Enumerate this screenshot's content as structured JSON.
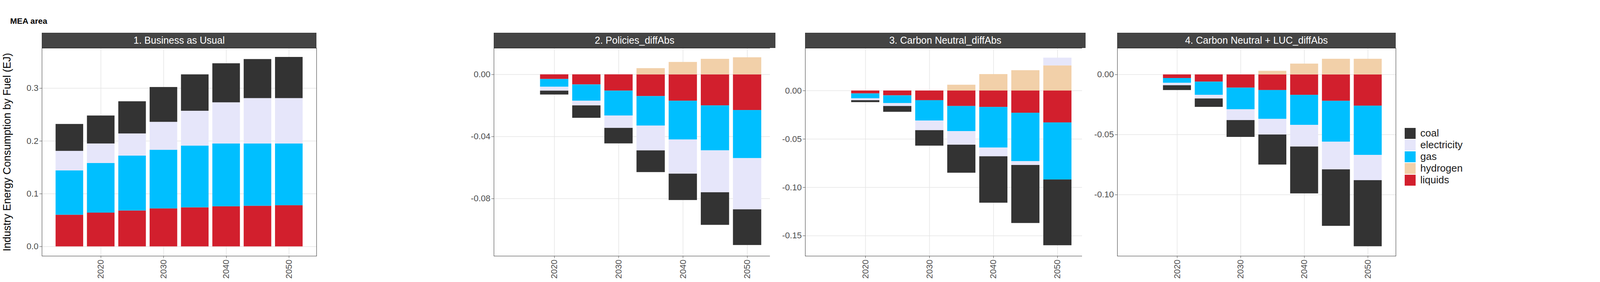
{
  "title": "MEA area",
  "chart_data": [
    {
      "type": "bar",
      "title": "1. Business as Usual",
      "ylabel": "Industry Energy Consumption by Fuel (EJ)",
      "stacked": true,
      "grid": true,
      "x": [
        2015,
        2020,
        2025,
        2030,
        2035,
        2040,
        2045,
        2050
      ],
      "xlim": [
        2010.6,
        2054.4
      ],
      "xticks": [
        2020,
        2030,
        2040,
        2050
      ],
      "ylim": [
        -0.018,
        0.376
      ],
      "yticks": [
        {
          "value": 0,
          "label": "0.0"
        },
        0.1,
        0.2,
        0.3
      ],
      "series": [
        {
          "name": "coal",
          "color": "#333333",
          "values": [
            0.051,
            0.053,
            0.061,
            0.066,
            0.069,
            0.074,
            0.074,
            0.078
          ]
        },
        {
          "name": "electricity",
          "color": "#E6E6FA",
          "values": [
            0.037,
            0.037,
            0.042,
            0.053,
            0.066,
            0.078,
            0.086,
            0.086
          ]
        },
        {
          "name": "gas",
          "color": "#00BFFF",
          "values": [
            0.084,
            0.094,
            0.104,
            0.111,
            0.117,
            0.119,
            0.118,
            0.117
          ]
        },
        {
          "name": "hydrogen",
          "color": "#F2D0A9",
          "values": [
            0,
            0,
            0,
            0,
            0,
            0,
            0,
            0
          ]
        },
        {
          "name": "liquids",
          "color": "#D21F2D",
          "values": [
            0.06,
            0.064,
            0.068,
            0.072,
            0.074,
            0.076,
            0.077,
            0.078
          ]
        }
      ]
    },
    {
      "type": "bar",
      "title": "2. Policies_diffAbs",
      "stacked": true,
      "grid": true,
      "x": [
        2015,
        2020,
        2025,
        2030,
        2035,
        2040,
        2045,
        2050
      ],
      "xlim": [
        2010.6,
        2054.4
      ],
      "xticks": [
        2020,
        2030,
        2040,
        2050
      ],
      "ylim": [
        -0.117,
        0.017
      ],
      "yticks": [
        {
          "value": 0,
          "label": "0.00"
        },
        -0.04,
        -0.08
      ],
      "series": [
        {
          "name": "coal",
          "color": "#333333",
          "values": [
            0,
            -0.0025,
            -0.008,
            -0.01,
            -0.014,
            -0.017,
            -0.021,
            -0.023
          ]
        },
        {
          "name": "electricity",
          "color": "#E6E6FA",
          "values": [
            0,
            -0.0025,
            -0.003,
            -0.008,
            -0.016,
            -0.022,
            -0.027,
            -0.033
          ]
        },
        {
          "name": "gas",
          "color": "#00BFFF",
          "values": [
            0,
            -0.005,
            -0.0105,
            -0.016,
            -0.019,
            -0.025,
            -0.029,
            -0.031
          ]
        },
        {
          "name": "hydrogen",
          "color": "#F2D0A9",
          "values": [
            0,
            0,
            0,
            0,
            0.004,
            0.008,
            0.01,
            0.011
          ]
        },
        {
          "name": "liquids",
          "color": "#D21F2D",
          "values": [
            0,
            -0.003,
            -0.0065,
            -0.0105,
            -0.014,
            -0.017,
            -0.02,
            -0.023
          ]
        }
      ]
    },
    {
      "type": "bar",
      "title": "3. Carbon Neutral_diffAbs",
      "stacked": true,
      "grid": true,
      "x": [
        2015,
        2020,
        2025,
        2030,
        2035,
        2040,
        2045,
        2050
      ],
      "xlim": [
        2010.6,
        2054.4
      ],
      "xticks": [
        2020,
        2030,
        2040,
        2050
      ],
      "ylim": [
        -0.171,
        0.044
      ],
      "yticks": [
        {
          "value": 0,
          "label": "0.00"
        },
        -0.05,
        {
          "value": -0.1,
          "label": "-0.10"
        },
        -0.15
      ],
      "series": [
        {
          "name": "coal",
          "color": "#333333",
          "values": [
            0,
            -0.002,
            -0.006,
            -0.016,
            -0.029,
            -0.048,
            -0.06,
            -0.068
          ]
        },
        {
          "name": "electricity",
          "color": "#E6E6FA",
          "values": [
            0,
            -0.002,
            -0.003,
            -0.01,
            -0.014,
            -0.009,
            -0.004,
            0.008
          ]
        },
        {
          "name": "gas",
          "color": "#00BFFF",
          "values": [
            0,
            -0.005,
            -0.008,
            -0.021,
            -0.026,
            -0.042,
            -0.05,
            -0.059
          ]
        },
        {
          "name": "hydrogen",
          "color": "#F2D0A9",
          "values": [
            0,
            0,
            0,
            0,
            0.006,
            0.017,
            0.021,
            0.026
          ]
        },
        {
          "name": "liquids",
          "color": "#D21F2D",
          "values": [
            0,
            -0.003,
            -0.005,
            -0.01,
            -0.016,
            -0.017,
            -0.023,
            -0.033
          ]
        }
      ]
    },
    {
      "type": "bar",
      "title": "4. Carbon Neutral + LUC_diffAbs",
      "stacked": true,
      "grid": true,
      "legend": "right",
      "x": [
        2015,
        2020,
        2025,
        2030,
        2035,
        2040,
        2045,
        2050
      ],
      "xlim": [
        2010.6,
        2054.4
      ],
      "xticks": [
        2020,
        2030,
        2040,
        2050
      ],
      "ylim": [
        -0.151,
        0.022
      ],
      "yticks": [
        {
          "value": 0,
          "label": "0.00"
        },
        -0.05,
        {
          "value": -0.1,
          "label": "-0.10"
        }
      ],
      "series": [
        {
          "name": "coal",
          "color": "#333333",
          "values": [
            0,
            -0.004,
            -0.007,
            -0.014,
            -0.025,
            -0.039,
            -0.047,
            -0.055
          ]
        },
        {
          "name": "electricity",
          "color": "#E6E6FA",
          "values": [
            0,
            -0.002,
            -0.003,
            -0.009,
            -0.013,
            -0.018,
            -0.023,
            -0.021
          ]
        },
        {
          "name": "gas",
          "color": "#00BFFF",
          "values": [
            0,
            -0.004,
            -0.011,
            -0.018,
            -0.024,
            -0.025,
            -0.034,
            -0.041
          ]
        },
        {
          "name": "hydrogen",
          "color": "#F2D0A9",
          "values": [
            0,
            0,
            0,
            0,
            0.003,
            0.009,
            0.013,
            0.013
          ]
        },
        {
          "name": "liquids",
          "color": "#D21F2D",
          "values": [
            0,
            -0.003,
            -0.006,
            -0.011,
            -0.013,
            -0.017,
            -0.022,
            -0.026
          ]
        }
      ]
    }
  ]
}
